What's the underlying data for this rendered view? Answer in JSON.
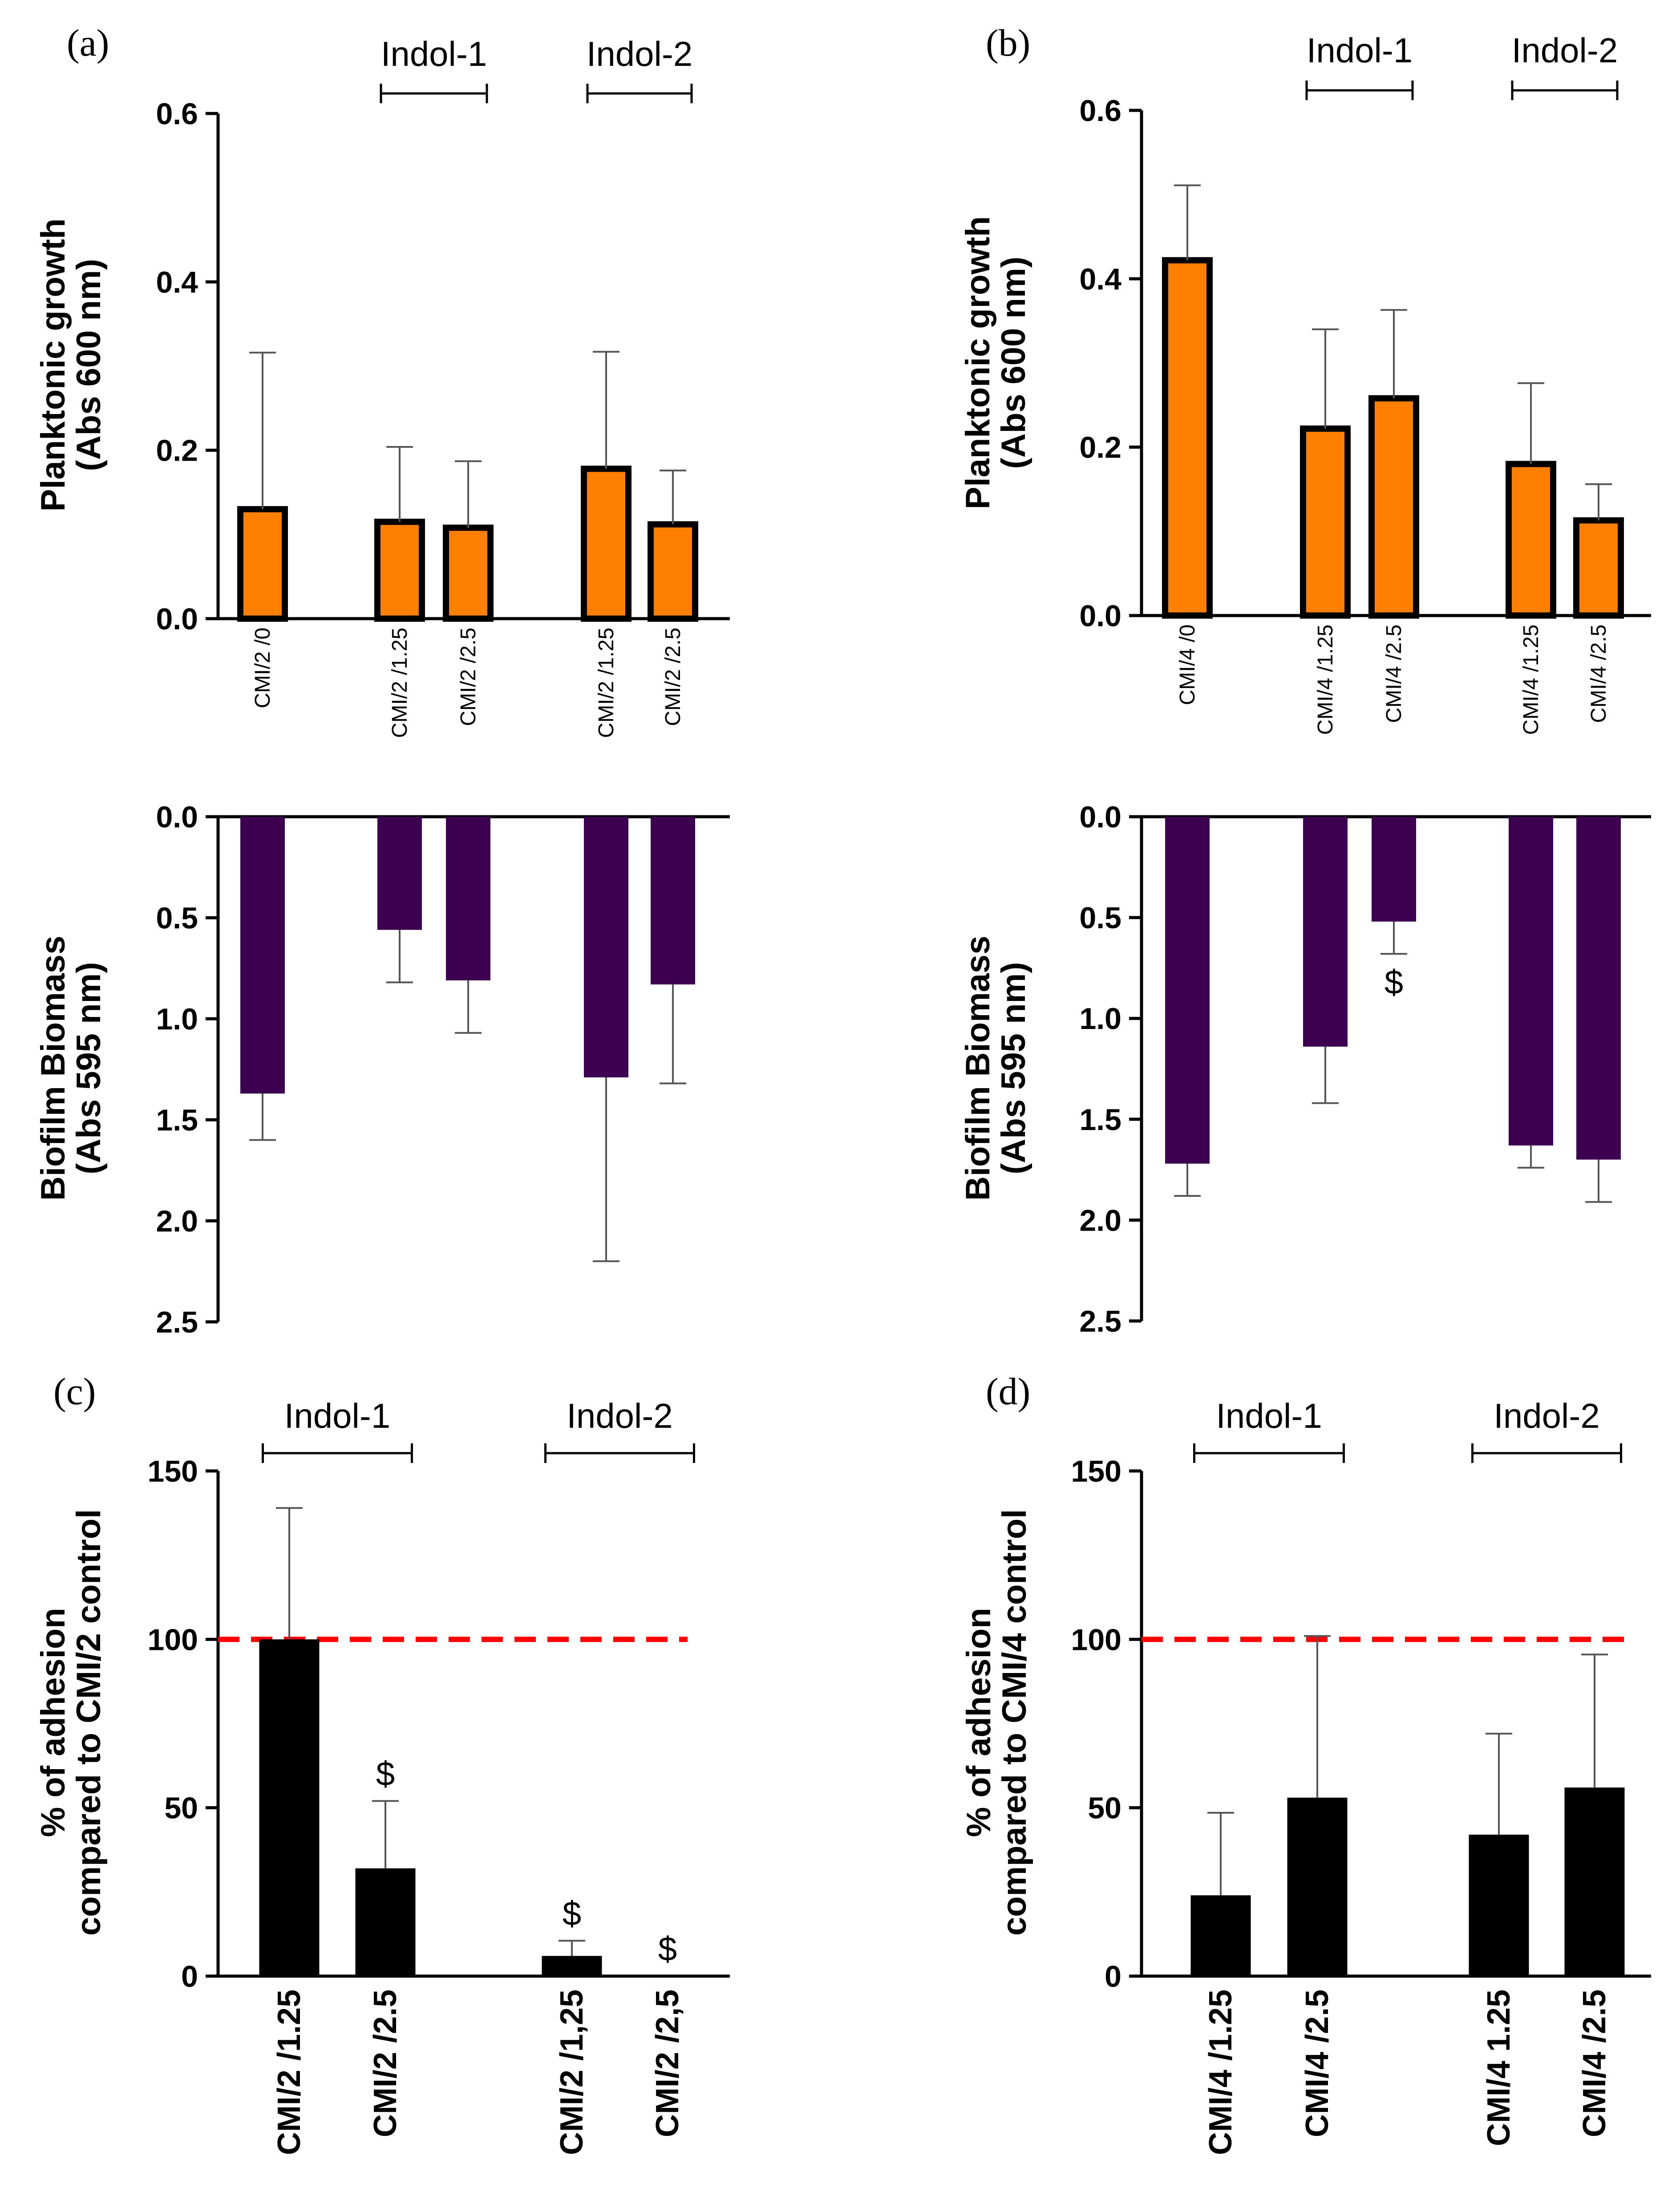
{
  "colors": {
    "planktonic": "#FF8000",
    "biofilm": "#3D0050",
    "adhesion": "#000000",
    "reference": "#FF0000"
  },
  "chart_data": [
    {
      "panel": "(a)",
      "type": "bar",
      "ylabel": [
        "Planktonic growth",
        "(Abs 600 nm)"
      ],
      "ylim": [
        0,
        0.6
      ],
      "yticks": [
        "0.0",
        "0.2",
        "0.4",
        "0.6"
      ],
      "categories": [
        "CMI/2 /0",
        "CMI/2 /1.25",
        "CMI/2 /2.5",
        "CMI/2 /1.25",
        "CMI/2 /2.5"
      ],
      "values": [
        0.13,
        0.115,
        0.108,
        0.178,
        0.112
      ],
      "errors": [
        0.186,
        0.089,
        0.079,
        0.139,
        0.064
      ],
      "groups": [
        {
          "label": "Indol-1",
          "from": 1,
          "to": 2
        },
        {
          "label": "Indol-2",
          "from": 3,
          "to": 4
        }
      ]
    },
    {
      "panel": "(a)",
      "type": "bar",
      "orientation": "inverted",
      "ylabel": [
        "Biofilm Biomass",
        "(Abs 595 nm)"
      ],
      "ylim": [
        0,
        2.5
      ],
      "yticks": [
        "0.0",
        "0.5",
        "1.0",
        "1.5",
        "2.0",
        "2.5"
      ],
      "values": [
        1.37,
        0.56,
        0.81,
        1.29,
        0.83
      ],
      "errors": [
        0.23,
        0.26,
        0.26,
        0.91,
        0.49
      ]
    },
    {
      "panel": "(b)",
      "type": "bar",
      "ylabel": [
        "Planktonic growth",
        "(Abs 600 nm)"
      ],
      "ylim": [
        0,
        0.6
      ],
      "yticks": [
        "0.0",
        "0.2",
        "0.4",
        "0.6"
      ],
      "categories": [
        "CMI/4 /0",
        "CMI/4 /1.25",
        "CMI/4 /2.5",
        "CMI/4 /1.25",
        "CMI/4 /2.5"
      ],
      "values": [
        0.422,
        0.222,
        0.258,
        0.18,
        0.113
      ],
      "errors": [
        0.089,
        0.118,
        0.105,
        0.096,
        0.043
      ],
      "groups": [
        {
          "label": "Indol-1",
          "from": 1,
          "to": 2
        },
        {
          "label": "Indol-2",
          "from": 3,
          "to": 4
        }
      ]
    },
    {
      "panel": "(b)",
      "type": "bar",
      "orientation": "inverted",
      "ylabel": [
        "Biofilm Biomass",
        "(Abs 595 nm)"
      ],
      "ylim": [
        0,
        2.5
      ],
      "yticks": [
        "0.0",
        "0.5",
        "1.0",
        "1.5",
        "2.0",
        "2.5"
      ],
      "values": [
        1.72,
        1.14,
        0.52,
        1.63,
        1.7
      ],
      "errors": [
        0.16,
        0.28,
        0.16,
        0.11,
        0.21
      ],
      "annotations": [
        {
          "index": 2,
          "text": "$"
        }
      ]
    },
    {
      "panel": "(c)",
      "type": "bar",
      "ylabel": [
        "% of adhesion",
        "compared to CMI/2 control"
      ],
      "ylim": [
        0,
        150
      ],
      "yticks": [
        "0",
        "50",
        "100",
        "150"
      ],
      "categories": [
        "CMI/2 /1.25",
        "CMI/2 /2.5",
        "CMI/2 /1,25",
        "CMI/2 /2,5"
      ],
      "values": [
        100,
        32,
        6,
        0
      ],
      "errors": [
        39,
        20,
        4.5,
        0
      ],
      "reference_line": 100,
      "annotations": [
        {
          "index": 1,
          "text": "$"
        },
        {
          "index": 2,
          "text": "$"
        },
        {
          "index": 3,
          "text": "$"
        }
      ],
      "groups": [
        {
          "label": "Indol-1",
          "from": 0,
          "to": 1
        },
        {
          "label": "Indol-2",
          "from": 2,
          "to": 3
        }
      ]
    },
    {
      "panel": "(d)",
      "type": "bar",
      "ylabel": [
        "% of adhesion",
        "compared to CMI/4 control"
      ],
      "ylim": [
        0,
        150
      ],
      "yticks": [
        "0",
        "50",
        "100",
        "150"
      ],
      "categories": [
        "CMI/4 /1.25",
        "CMI/4 /2.5",
        "CMI/4 1.25",
        "CMI/4 /2.5"
      ],
      "values": [
        24,
        53,
        42,
        56
      ],
      "errors": [
        24.5,
        48,
        30,
        39.5
      ],
      "reference_line": 100,
      "groups": [
        {
          "label": "Indol-1",
          "from": 0,
          "to": 1
        },
        {
          "label": "Indol-2",
          "from": 2,
          "to": 3
        }
      ]
    }
  ]
}
